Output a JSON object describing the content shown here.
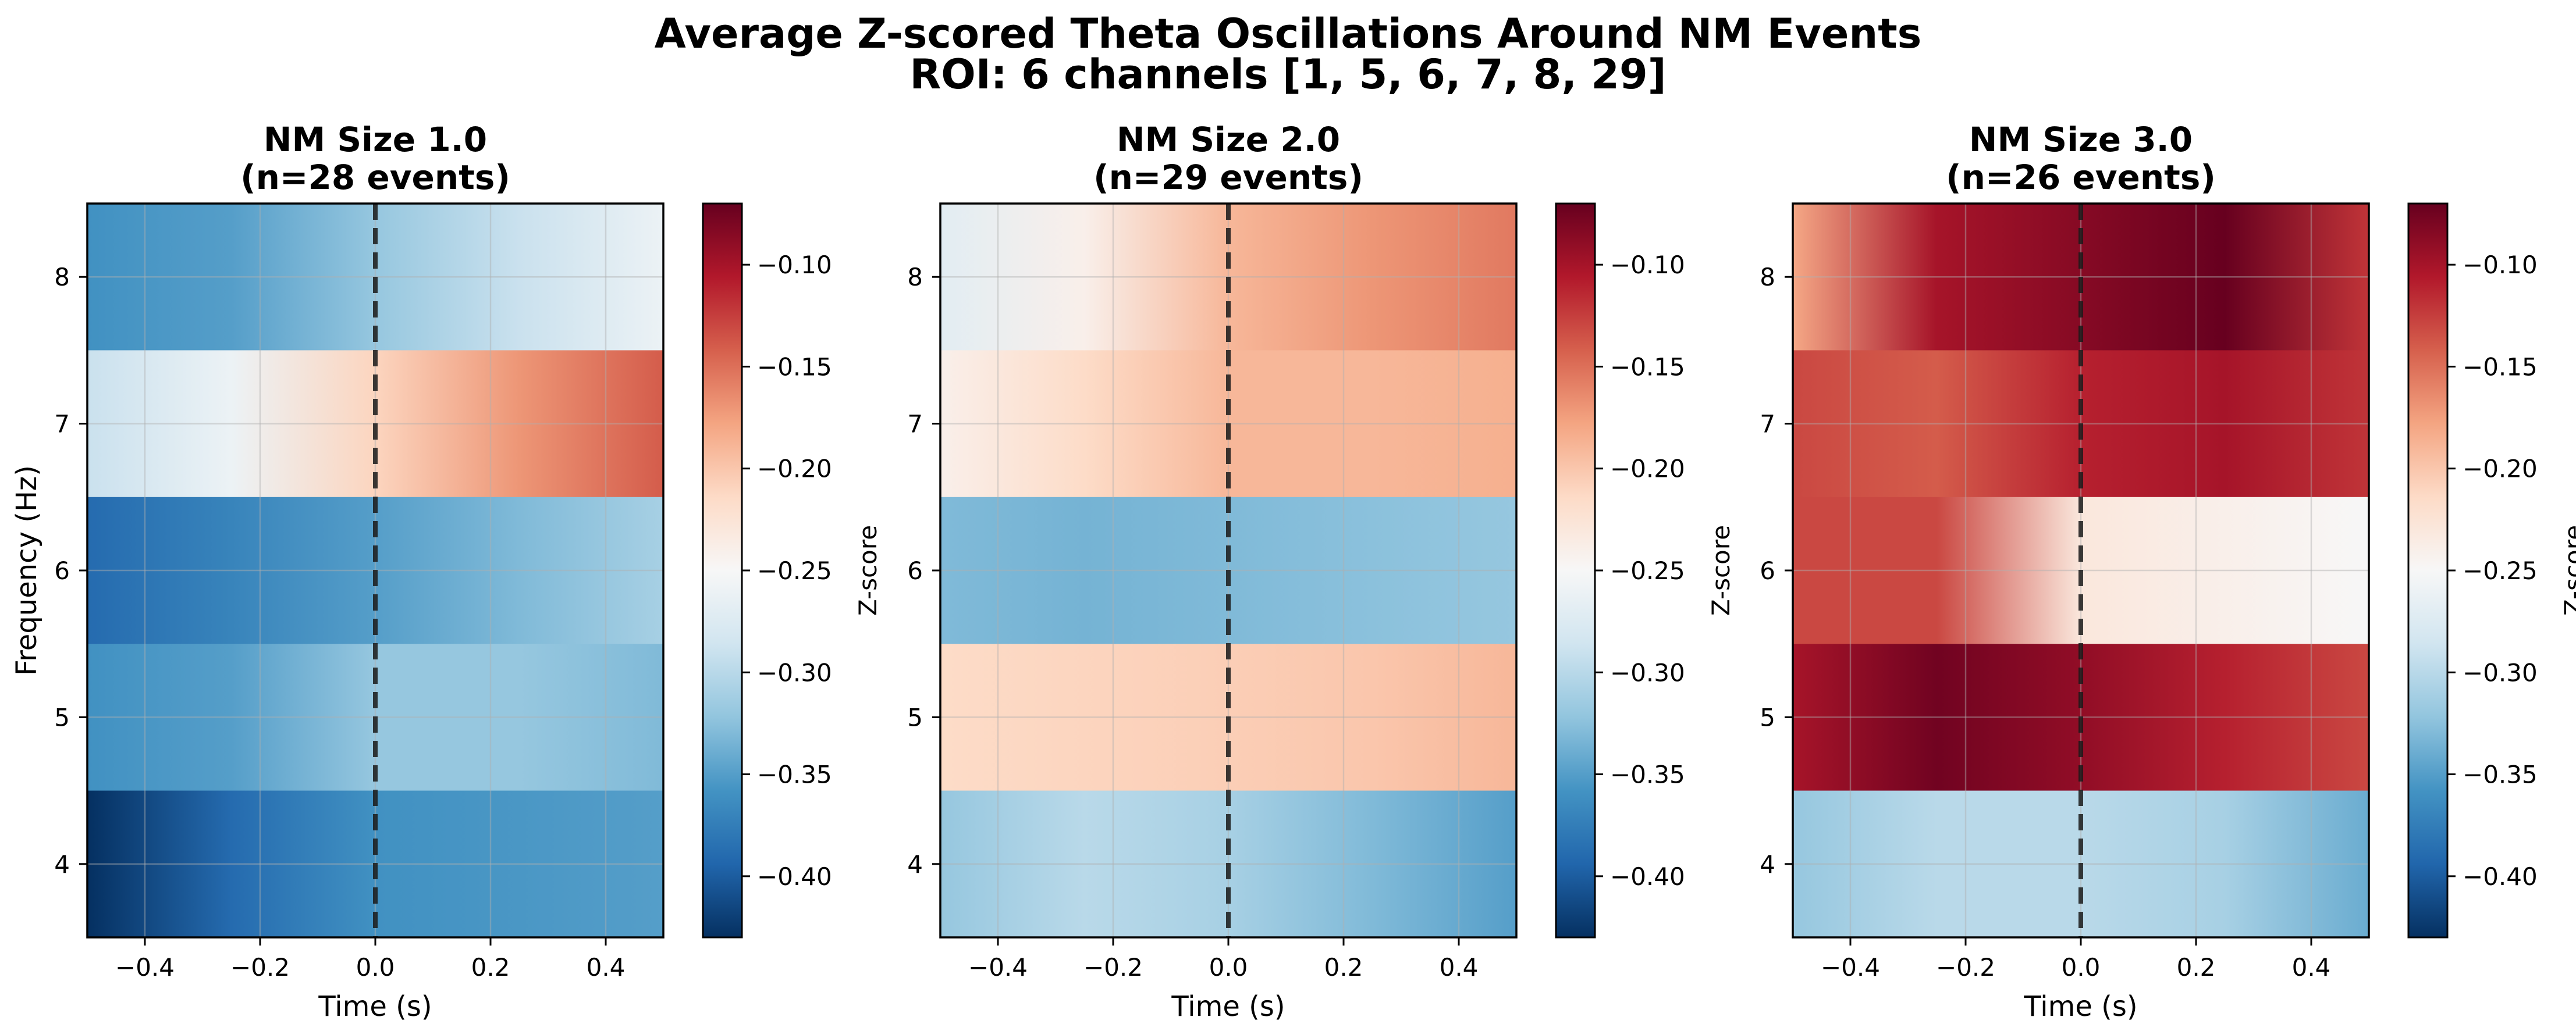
{
  "figure": {
    "title_line1": "Average Z-scored Theta Oscillations Around NM Events",
    "title_line2": "ROI: 6 channels [1, 5, 6, 7, 8, 29]"
  },
  "colormap": {
    "name": "RdBu_r",
    "stops": [
      "#053061",
      "#2166ac",
      "#4393c3",
      "#92c5de",
      "#d1e5f0",
      "#f7f7f7",
      "#fddbc7",
      "#f4a582",
      "#d6604d",
      "#b2182b",
      "#67001f"
    ],
    "vmin": -0.43,
    "vmax": -0.07
  },
  "chart_data": [
    {
      "type": "heatmap",
      "title_line1": "NM Size 1.0",
      "title_line2": "(n=28 events)",
      "xlabel": "Time (s)",
      "ylabel": "Frequency (Hz)",
      "colorbar_label": "Z-score",
      "xlim": [
        -0.5,
        0.5
      ],
      "ylim": [
        3.5,
        8.5
      ],
      "xticks": [
        -0.4,
        -0.2,
        0.0,
        0.2,
        0.4
      ],
      "xtick_labels": [
        "−0.4",
        "−0.2",
        "0.0",
        "0.2",
        "0.4"
      ],
      "yticks": [
        4,
        5,
        6,
        7,
        8
      ],
      "ytick_labels": [
        "4",
        "5",
        "6",
        "7",
        "8"
      ],
      "cbar_ticks": [
        -0.4,
        -0.35,
        -0.3,
        -0.25,
        -0.2,
        -0.15,
        -0.1
      ],
      "cbar_tick_labels": [
        "−0.40",
        "−0.35",
        "−0.30",
        "−0.25",
        "−0.20",
        "−0.15",
        "−0.10"
      ],
      "event_line_x": 0.0,
      "grid": true,
      "time": [
        -0.5,
        -0.25,
        0.0,
        0.25,
        0.5
      ],
      "rows": [
        {
          "freq": 8,
          "z": [
            -0.36,
            -0.35,
            -0.32,
            -0.29,
            -0.26
          ]
        },
        {
          "freq": 7,
          "z": [
            -0.29,
            -0.26,
            -0.21,
            -0.17,
            -0.14
          ]
        },
        {
          "freq": 6,
          "z": [
            -0.39,
            -0.37,
            -0.35,
            -0.33,
            -0.31
          ]
        },
        {
          "freq": 5,
          "z": [
            -0.36,
            -0.35,
            -0.32,
            -0.32,
            -0.33
          ]
        },
        {
          "freq": 4,
          "z": [
            -0.43,
            -0.39,
            -0.36,
            -0.355,
            -0.35
          ]
        }
      ]
    },
    {
      "type": "heatmap",
      "title_line1": "NM Size 2.0",
      "title_line2": "(n=29 events)",
      "xlabel": "Time (s)",
      "ylabel": "",
      "colorbar_label": "Z-score",
      "xlim": [
        -0.5,
        0.5
      ],
      "ylim": [
        3.5,
        8.5
      ],
      "xticks": [
        -0.4,
        -0.2,
        0.0,
        0.2,
        0.4
      ],
      "xtick_labels": [
        "−0.4",
        "−0.2",
        "0.0",
        "0.2",
        "0.4"
      ],
      "yticks": [
        4,
        5,
        6,
        7,
        8
      ],
      "ytick_labels": [
        "4",
        "5",
        "6",
        "7",
        "8"
      ],
      "cbar_ticks": [
        -0.4,
        -0.35,
        -0.3,
        -0.25,
        -0.2,
        -0.15,
        -0.1
      ],
      "cbar_tick_labels": [
        "−0.40",
        "−0.35",
        "−0.30",
        "−0.25",
        "−0.20",
        "−0.15",
        "−0.10"
      ],
      "event_line_x": 0.0,
      "grid": true,
      "time": [
        -0.5,
        -0.25,
        0.0,
        0.25,
        0.5
      ],
      "rows": [
        {
          "freq": 8,
          "z": [
            -0.27,
            -0.24,
            -0.19,
            -0.17,
            -0.155
          ]
        },
        {
          "freq": 7,
          "z": [
            -0.24,
            -0.215,
            -0.19,
            -0.19,
            -0.185
          ]
        },
        {
          "freq": 6,
          "z": [
            -0.33,
            -0.335,
            -0.33,
            -0.325,
            -0.32
          ]
        },
        {
          "freq": 5,
          "z": [
            -0.215,
            -0.21,
            -0.205,
            -0.2,
            -0.19
          ]
        },
        {
          "freq": 4,
          "z": [
            -0.32,
            -0.3,
            -0.31,
            -0.33,
            -0.35
          ]
        }
      ]
    },
    {
      "type": "heatmap",
      "title_line1": "NM Size 3.0",
      "title_line2": "(n=26 events)",
      "xlabel": "Time (s)",
      "ylabel": "",
      "colorbar_label": "Z-score",
      "xlim": [
        -0.5,
        0.5
      ],
      "ylim": [
        3.5,
        8.5
      ],
      "xticks": [
        -0.4,
        -0.2,
        0.0,
        0.2,
        0.4
      ],
      "xtick_labels": [
        "−0.4",
        "−0.2",
        "0.0",
        "0.2",
        "0.4"
      ],
      "yticks": [
        4,
        5,
        6,
        7,
        8
      ],
      "ytick_labels": [
        "4",
        "5",
        "6",
        "7",
        "8"
      ],
      "cbar_ticks": [
        -0.4,
        -0.35,
        -0.3,
        -0.25,
        -0.2,
        -0.15,
        -0.1
      ],
      "cbar_tick_labels": [
        "−0.40",
        "−0.35",
        "−0.30",
        "−0.25",
        "−0.20",
        "−0.15",
        "−0.10"
      ],
      "event_line_x": 0.0,
      "grid": true,
      "time": [
        -0.5,
        -0.25,
        0.0,
        0.25,
        0.5
      ],
      "rows": [
        {
          "freq": 8,
          "z": [
            -0.18,
            -0.1,
            -0.085,
            -0.07,
            -0.12
          ]
        },
        {
          "freq": 7,
          "z": [
            -0.13,
            -0.14,
            -0.11,
            -0.1,
            -0.12
          ]
        },
        {
          "freq": 6,
          "z": [
            -0.13,
            -0.13,
            -0.23,
            -0.24,
            -0.25
          ]
        },
        {
          "freq": 5,
          "z": [
            -0.1,
            -0.075,
            -0.09,
            -0.11,
            -0.13
          ]
        },
        {
          "freq": 4,
          "z": [
            -0.32,
            -0.3,
            -0.3,
            -0.31,
            -0.34
          ]
        }
      ]
    }
  ]
}
